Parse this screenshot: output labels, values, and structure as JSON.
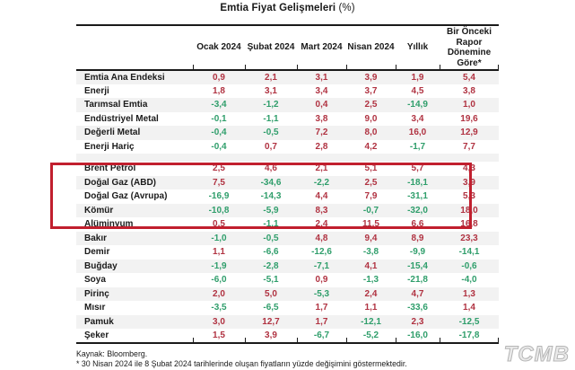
{
  "title": {
    "text": "Emtia Fiyat Gelişmeleri",
    "unit": "(%)"
  },
  "watermark": "TCMB",
  "colors": {
    "positive": "#b03241",
    "negative": "#2f9e6b",
    "stripe": "#f2f2f2",
    "box_border": "#c11f2e"
  },
  "chart_data": {
    "type": "table",
    "title": "Emtia Fiyat Gelişmeleri (%)",
    "columns": [
      "Ocak 2024",
      "Şubat 2024",
      "Mart 2024",
      "Nisan 2024",
      "Yıllık",
      "Bir Önceki Rapor Dönemine Göre*"
    ],
    "rows": [
      {
        "label": "Emtia Ana Endeksi",
        "values": [
          0.9,
          2.1,
          3.1,
          3.9,
          1.9,
          5.4
        ]
      },
      {
        "label": "Enerji",
        "values": [
          1.8,
          3.1,
          3.4,
          3.7,
          4.5,
          3.8
        ]
      },
      {
        "label": "Tarımsal Emtia",
        "values": [
          -3.4,
          -1.2,
          0.4,
          2.5,
          -14.9,
          1.0
        ]
      },
      {
        "label": "Endüstriyel Metal",
        "values": [
          -0.1,
          -1.1,
          3.8,
          9.0,
          3.4,
          19.6
        ]
      },
      {
        "label": "Değerli Metal",
        "values": [
          -0.4,
          -0.5,
          7.2,
          8.0,
          16.0,
          12.9
        ]
      },
      {
        "label": "Enerji Hariç",
        "values": [
          -0.4,
          0.7,
          2.8,
          4.2,
          -1.7,
          7.7
        ]
      },
      {
        "label": "Brent Petrol",
        "values": [
          2.5,
          4.6,
          2.1,
          5.1,
          5.7,
          4.3
        ]
      },
      {
        "label": "Doğal Gaz (ABD)",
        "values": [
          7.5,
          -34.6,
          -2.2,
          2.5,
          -18.1,
          3.9
        ]
      },
      {
        "label": "Doğal Gaz (Avrupa)",
        "values": [
          -16.9,
          -14.3,
          4.4,
          7.9,
          -31.1,
          5.3
        ]
      },
      {
        "label": "Kömür",
        "values": [
          -10.8,
          -5.9,
          8.3,
          -0.7,
          -32.0,
          18.0
        ]
      },
      {
        "label": "Alüminyum",
        "values": [
          0.5,
          -1.1,
          2.4,
          11.5,
          6.6,
          16.8
        ]
      },
      {
        "label": "Bakır",
        "values": [
          -1.0,
          -0.5,
          4.8,
          9.4,
          8.9,
          23.3
        ]
      },
      {
        "label": "Demir",
        "values": [
          1.1,
          -6.6,
          -12.6,
          -3.8,
          -9.9,
          -14.1
        ]
      },
      {
        "label": "Buğday",
        "values": [
          -1.9,
          -2.8,
          -7.1,
          4.1,
          -15.4,
          -0.6
        ]
      },
      {
        "label": "Soya",
        "values": [
          -6.0,
          -5.1,
          0.9,
          -1.3,
          -21.8,
          -4.0
        ]
      },
      {
        "label": "Pirinç",
        "values": [
          2.0,
          5.0,
          -5.3,
          2.4,
          4.7,
          1.3
        ]
      },
      {
        "label": "Mısır",
        "values": [
          -3.5,
          -6.5,
          1.7,
          1.1,
          -33.6,
          1.4
        ]
      },
      {
        "label": "Pamuk",
        "values": [
          3.0,
          12.7,
          1.7,
          -12.1,
          2.3,
          -12.5
        ]
      },
      {
        "label": "Şeker",
        "values": [
          1.5,
          3.9,
          -6.7,
          -5.2,
          -16.0,
          -17.8
        ]
      }
    ],
    "gap_before_index": 6,
    "highlighted_row_indices": [
      6,
      7,
      8,
      9
    ],
    "highlighted_rows": [
      "Brent Petrol",
      "Doğal Gaz (ABD)",
      "Doğal Gaz (Avrupa)",
      "Kömür"
    ],
    "value_format": "one_decimal_comma",
    "source": "Kaynak: Bloomberg.",
    "footnote": "* 30 Nisan 2024 ile 8 Şubat 2024 tarihlerinde oluşan fiyatların yüzde değişimini göstermektedir."
  }
}
